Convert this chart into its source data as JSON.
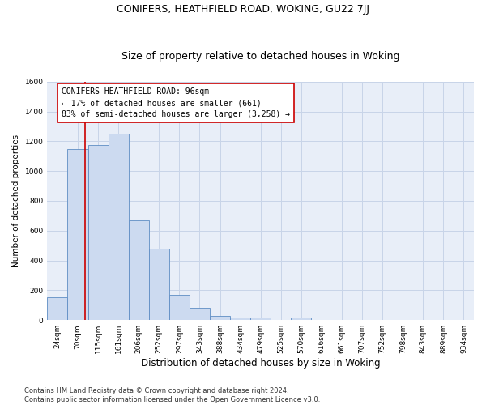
{
  "title": "CONIFERS, HEATHFIELD ROAD, WOKING, GU22 7JJ",
  "subtitle": "Size of property relative to detached houses in Woking",
  "xlabel": "Distribution of detached houses by size in Woking",
  "ylabel": "Number of detached properties",
  "categories": [
    "24sqm",
    "70sqm",
    "115sqm",
    "161sqm",
    "206sqm",
    "252sqm",
    "297sqm",
    "343sqm",
    "388sqm",
    "434sqm",
    "479sqm",
    "525sqm",
    "570sqm",
    "616sqm",
    "661sqm",
    "707sqm",
    "752sqm",
    "798sqm",
    "843sqm",
    "889sqm",
    "934sqm"
  ],
  "values": [
    155,
    1150,
    1175,
    1250,
    670,
    480,
    170,
    80,
    30,
    20,
    15,
    0,
    15,
    0,
    0,
    0,
    0,
    0,
    0,
    0,
    0
  ],
  "bar_color": "#ccdaf0",
  "bar_edge_color": "#5f8dc4",
  "grid_color": "#c8d4e8",
  "background_color": "#e8eef8",
  "annotation_text": "CONIFERS HEATHFIELD ROAD: 96sqm\n← 17% of detached houses are smaller (661)\n83% of semi-detached houses are larger (3,258) →",
  "vline_color": "#cc0000",
  "vline_x": 1.35,
  "ylim": [
    0,
    1600
  ],
  "yticks": [
    0,
    200,
    400,
    600,
    800,
    1000,
    1200,
    1400,
    1600
  ],
  "footer": "Contains HM Land Registry data © Crown copyright and database right 2024.\nContains public sector information licensed under the Open Government Licence v3.0.",
  "title_fontsize": 9,
  "subtitle_fontsize": 9,
  "xlabel_fontsize": 8.5,
  "ylabel_fontsize": 7.5,
  "tick_fontsize": 6.5,
  "annotation_fontsize": 7,
  "footer_fontsize": 6
}
